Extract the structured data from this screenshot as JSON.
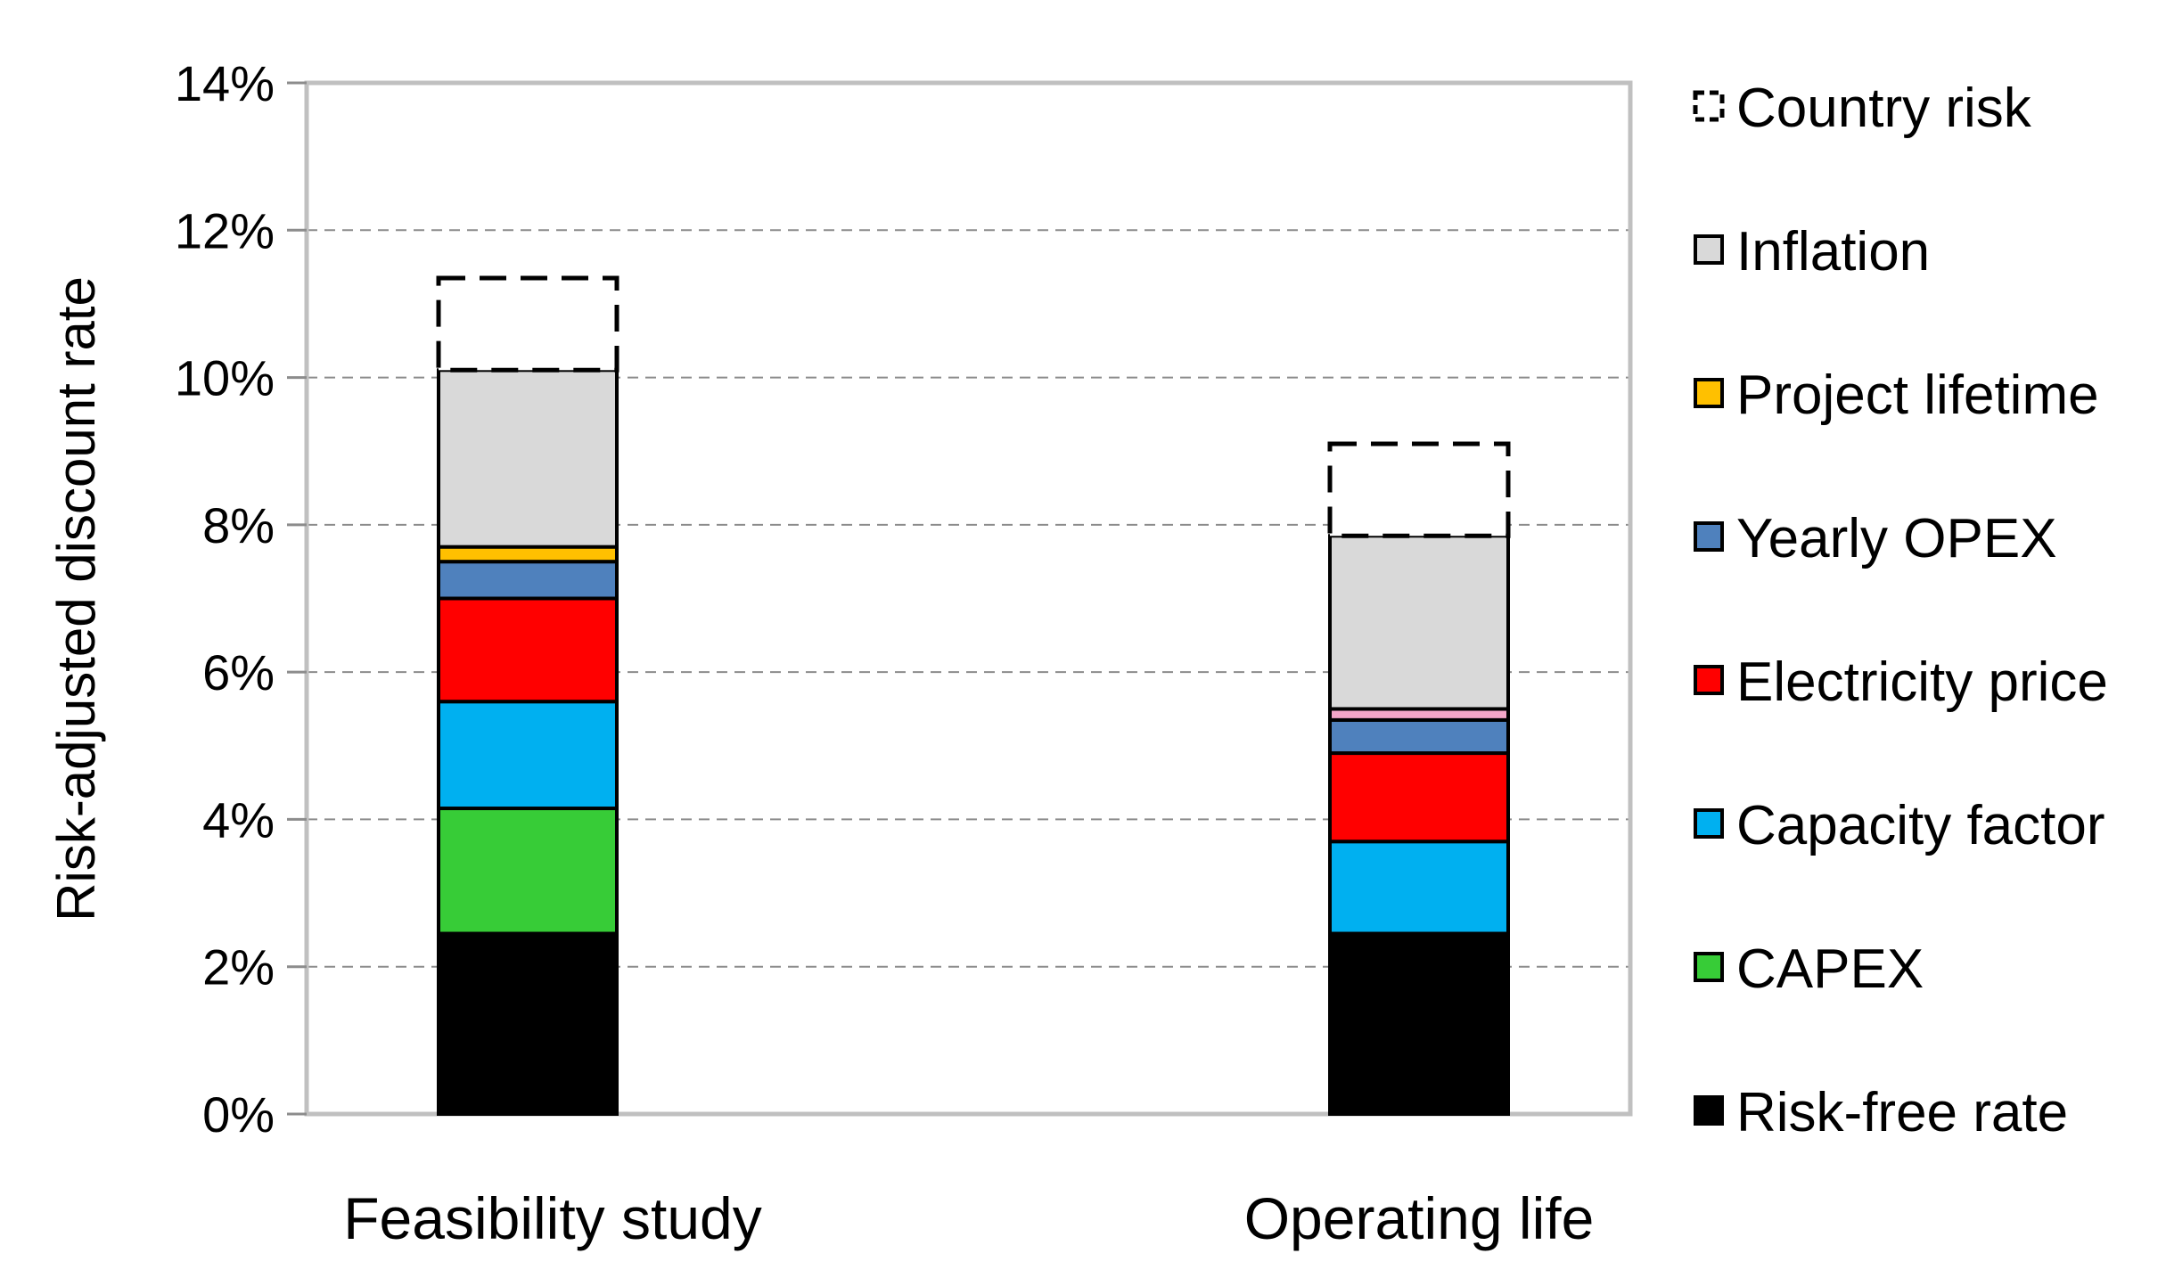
{
  "chart_data": {
    "type": "stacked-bar",
    "title": "",
    "ylabel": "Risk-adjusted discount rate",
    "xlabel": "",
    "ylim": [
      0,
      14
    ],
    "yticks": [
      0,
      2,
      4,
      6,
      8,
      10,
      12,
      14
    ],
    "ytick_labels": [
      "0%",
      "2%",
      "4%",
      "6%",
      "8%",
      "10%",
      "12%",
      "14%"
    ],
    "grid": true,
    "legend_position": "right",
    "categories": [
      "Feasibility study",
      "Operating life"
    ],
    "series": [
      {
        "name": "Risk-free rate",
        "color": "#000000",
        "style": "solid",
        "values": [
          2.45,
          2.45
        ]
      },
      {
        "name": "CAPEX",
        "color": "#37cc37",
        "style": "solid",
        "values": [
          1.7,
          0
        ]
      },
      {
        "name": "Capacity factor",
        "color": "#00b0f0",
        "style": "solid",
        "values": [
          1.45,
          1.25
        ]
      },
      {
        "name": "Electricity price",
        "color": "#ff0000",
        "style": "solid",
        "values": [
          1.4,
          1.2
        ]
      },
      {
        "name": "Yearly OPEX",
        "color": "#4f81bd",
        "style": "solid",
        "values": [
          0.5,
          0.45
        ]
      },
      {
        "name": "Project lifetime",
        "color": "#ffc000",
        "style": "solid",
        "values": [
          0.2,
          0
        ]
      },
      {
        "name": "",
        "color": "#f4a6c8",
        "style": "solid",
        "values": [
          0,
          0.15
        ]
      },
      {
        "name": "Inflation",
        "color": "#d9d9d9",
        "style": "solid",
        "values": [
          2.4,
          2.35
        ]
      },
      {
        "name": "Country risk",
        "color": "#ffffff",
        "style": "dashed",
        "values": [
          1.25,
          1.25
        ]
      }
    ],
    "legend_order": [
      "Country risk",
      "Inflation",
      "Project lifetime",
      "Yearly OPEX",
      "Electricity price",
      "Capacity factor",
      "CAPEX",
      "Risk-free rate"
    ]
  }
}
